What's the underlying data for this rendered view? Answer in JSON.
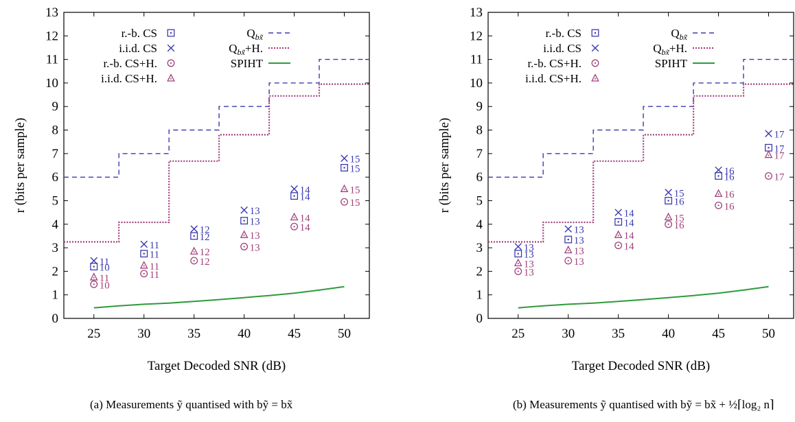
{
  "chart_data": [
    {
      "type": "scatter",
      "caption": "(a) Measurements ỹ quantised with bỹ = bx̃",
      "xlabel": "Target Decoded SNR (dB)",
      "ylabel": "r (bits per sample)",
      "xlim": [
        22,
        52.5
      ],
      "ylim": [
        0,
        13
      ],
      "xticks": [
        25,
        30,
        35,
        40,
        45,
        50
      ],
      "yticks": [
        0,
        1,
        2,
        3,
        4,
        5,
        6,
        7,
        8,
        9,
        10,
        11,
        12,
        13
      ],
      "grid": false,
      "legend": "top-left, two columns",
      "series": [
        {
          "name": "r.-b. CS",
          "marker": "square",
          "color": "#3a3ab0",
          "x": [
            25,
            30,
            35,
            40,
            45,
            50
          ],
          "y": [
            2.2,
            2.75,
            3.5,
            4.15,
            5.2,
            6.4
          ],
          "labels": [
            "10",
            "11",
            "12",
            "13",
            "14",
            "15"
          ]
        },
        {
          "name": "i.i.d. CS",
          "marker": "cross",
          "color": "#3a3ab0",
          "x": [
            25,
            30,
            35,
            40,
            45,
            50
          ],
          "y": [
            2.45,
            3.15,
            3.8,
            4.6,
            5.5,
            6.8
          ],
          "labels": [
            "11",
            "11",
            "12",
            "13",
            "14",
            "15"
          ]
        },
        {
          "name": "r.-b. CS+H.",
          "marker": "circle",
          "color": "#a0407a",
          "x": [
            25,
            30,
            35,
            40,
            45,
            50
          ],
          "y": [
            1.45,
            1.9,
            2.45,
            3.05,
            3.9,
            4.95
          ],
          "labels": [
            "10",
            "11",
            "12",
            "13",
            "14",
            "15"
          ]
        },
        {
          "name": "i.i.d. CS+H.",
          "marker": "triangle",
          "color": "#a0407a",
          "x": [
            25,
            30,
            35,
            40,
            45,
            50
          ],
          "y": [
            1.75,
            2.25,
            2.85,
            3.55,
            4.3,
            5.5
          ],
          "labels": [
            "11",
            "11",
            "12",
            "13",
            "14",
            "15"
          ]
        },
        {
          "name": "Q",
          "name_sub": "bx̃",
          "style": "dashed-step",
          "color": "#3a3ab0",
          "x": [
            22,
            27.5,
            27.5,
            32.5,
            32.5,
            37.5,
            37.5,
            42.5,
            42.5,
            47.5,
            47.5,
            52.5
          ],
          "y": [
            6,
            6,
            7,
            7,
            8,
            8,
            9,
            9,
            10,
            10,
            11,
            11
          ]
        },
        {
          "name": "Q",
          "name_sub": "bx̃",
          "name_suffix": "+H.",
          "style": "dotted-step",
          "color": "#a0407a",
          "x": [
            22,
            27.5,
            27.5,
            32.5,
            32.5,
            37.5,
            37.5,
            42.5,
            42.5,
            47.5,
            47.5,
            52.5
          ],
          "y": [
            3.25,
            3.25,
            4.08,
            4.08,
            6.68,
            6.68,
            7.8,
            7.8,
            9.45,
            9.45,
            9.95,
            9.95
          ]
        },
        {
          "name": "SPIHT",
          "style": "solid",
          "color": "#2e9a3a",
          "x": [
            25,
            27.5,
            30,
            32.5,
            35,
            37.5,
            40,
            42.5,
            45,
            47.5,
            50
          ],
          "y": [
            0.45,
            0.53,
            0.6,
            0.65,
            0.72,
            0.8,
            0.88,
            0.97,
            1.07,
            1.2,
            1.35
          ]
        }
      ]
    },
    {
      "type": "scatter",
      "caption": "(b) Measurements ỹ quantised with bỹ = bx̃ + ½⌈log₂ n⌉",
      "xlabel": "Target Decoded SNR (dB)",
      "ylabel": "r (bits per sample)",
      "xlim": [
        22,
        52.5
      ],
      "ylim": [
        0,
        13
      ],
      "xticks": [
        25,
        30,
        35,
        40,
        45,
        50
      ],
      "yticks": [
        0,
        1,
        2,
        3,
        4,
        5,
        6,
        7,
        8,
        9,
        10,
        11,
        12,
        13
      ],
      "grid": false,
      "legend": "top-left, two columns",
      "series": [
        {
          "name": "r.-b. CS",
          "marker": "square",
          "color": "#3a3ab0",
          "x": [
            25,
            30,
            35,
            40,
            45,
            50
          ],
          "y": [
            2.75,
            3.35,
            4.1,
            5.0,
            6.05,
            7.25
          ],
          "labels": [
            "13",
            "13",
            "14",
            "16",
            "16",
            "17"
          ]
        },
        {
          "name": "i.i.d. CS",
          "marker": "cross",
          "color": "#3a3ab0",
          "x": [
            25,
            30,
            35,
            40,
            45,
            50
          ],
          "y": [
            3.05,
            3.8,
            4.5,
            5.35,
            6.3,
            7.85
          ],
          "labels": [
            "13",
            "13",
            "14",
            "15",
            "16",
            "17"
          ]
        },
        {
          "name": "r.-b. CS+H.",
          "marker": "circle",
          "color": "#a0407a",
          "x": [
            25,
            30,
            35,
            40,
            45,
            50
          ],
          "y": [
            2.0,
            2.45,
            3.1,
            4.0,
            4.8,
            6.05
          ],
          "labels": [
            "13",
            "13",
            "14",
            "16",
            "16",
            "17"
          ]
        },
        {
          "name": "i.i.d. CS+H.",
          "marker": "triangle",
          "color": "#a0407a",
          "x": [
            25,
            30,
            35,
            40,
            45,
            50
          ],
          "y": [
            2.35,
            2.9,
            3.55,
            4.3,
            5.3,
            6.95
          ],
          "labels": [
            "13",
            "13",
            "14",
            "15",
            "16",
            "17"
          ]
        },
        {
          "name": "Q",
          "name_sub": "bx̃",
          "style": "dashed-step",
          "color": "#3a3ab0",
          "x": [
            22,
            27.5,
            27.5,
            32.5,
            32.5,
            37.5,
            37.5,
            42.5,
            42.5,
            47.5,
            47.5,
            52.5
          ],
          "y": [
            6,
            6,
            7,
            7,
            8,
            8,
            9,
            9,
            10,
            10,
            11,
            11
          ]
        },
        {
          "name": "Q",
          "name_sub": "bx̃",
          "name_suffix": "+H.",
          "style": "dotted-step",
          "color": "#a0407a",
          "x": [
            22,
            27.5,
            27.5,
            32.5,
            32.5,
            37.5,
            37.5,
            42.5,
            42.5,
            47.5,
            47.5,
            52.5
          ],
          "y": [
            3.25,
            3.25,
            4.08,
            4.08,
            6.68,
            6.68,
            7.8,
            7.8,
            9.45,
            9.45,
            9.95,
            9.95
          ]
        },
        {
          "name": "SPIHT",
          "style": "solid",
          "color": "#2e9a3a",
          "x": [
            25,
            27.5,
            30,
            32.5,
            35,
            37.5,
            40,
            42.5,
            45,
            47.5,
            50
          ],
          "y": [
            0.45,
            0.53,
            0.6,
            0.65,
            0.72,
            0.8,
            0.88,
            0.97,
            1.07,
            1.2,
            1.35
          ]
        }
      ]
    }
  ]
}
